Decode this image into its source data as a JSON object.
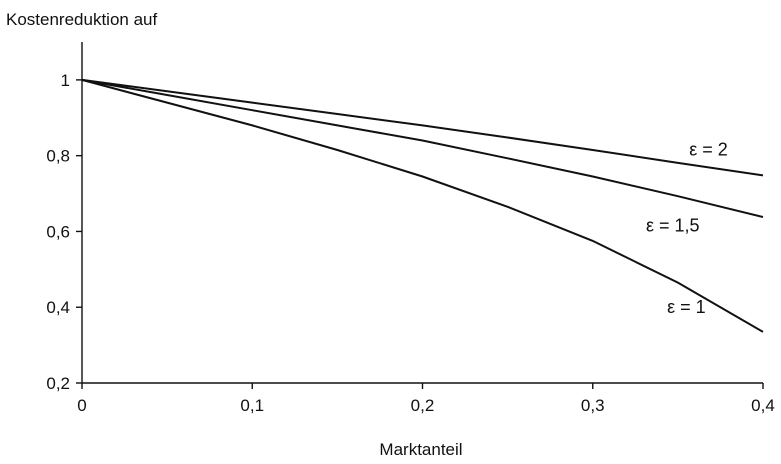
{
  "chart_data": {
    "type": "line",
    "title": "",
    "ylabel": "Kostenreduktion auf",
    "xlabel": "Marktanteil",
    "xlim": [
      0,
      0.4
    ],
    "ylim": [
      0.2,
      1.1
    ],
    "x_ticks": [
      0,
      0.1,
      0.2,
      0.3,
      0.4
    ],
    "x_tick_labels": [
      "0",
      "0,1",
      "0,2",
      "0,3",
      "0,4"
    ],
    "y_ticks": [
      0.2,
      0.4,
      0.6,
      0.8,
      1.0
    ],
    "y_tick_labels": [
      "0,2",
      "0,4",
      "0,6",
      "0,8",
      "1"
    ],
    "grid": false,
    "legend": "none",
    "x": [
      0,
      0.05,
      0.1,
      0.15,
      0.2,
      0.25,
      0.3,
      0.35,
      0.4
    ],
    "series": [
      {
        "values": [
          1.0,
          0.94,
          0.88,
          0.815,
          0.745,
          0.665,
          0.575,
          0.465,
          0.335
        ],
        "annotation": "ε = 1"
      },
      {
        "values": [
          1.0,
          0.96,
          0.92,
          0.88,
          0.84,
          0.793,
          0.745,
          0.693,
          0.638
        ],
        "annotation": "ε = 1,5"
      },
      {
        "values": [
          1.0,
          0.97,
          0.94,
          0.91,
          0.88,
          0.848,
          0.815,
          0.781,
          0.748
        ],
        "annotation": "ε = 2"
      }
    ]
  }
}
